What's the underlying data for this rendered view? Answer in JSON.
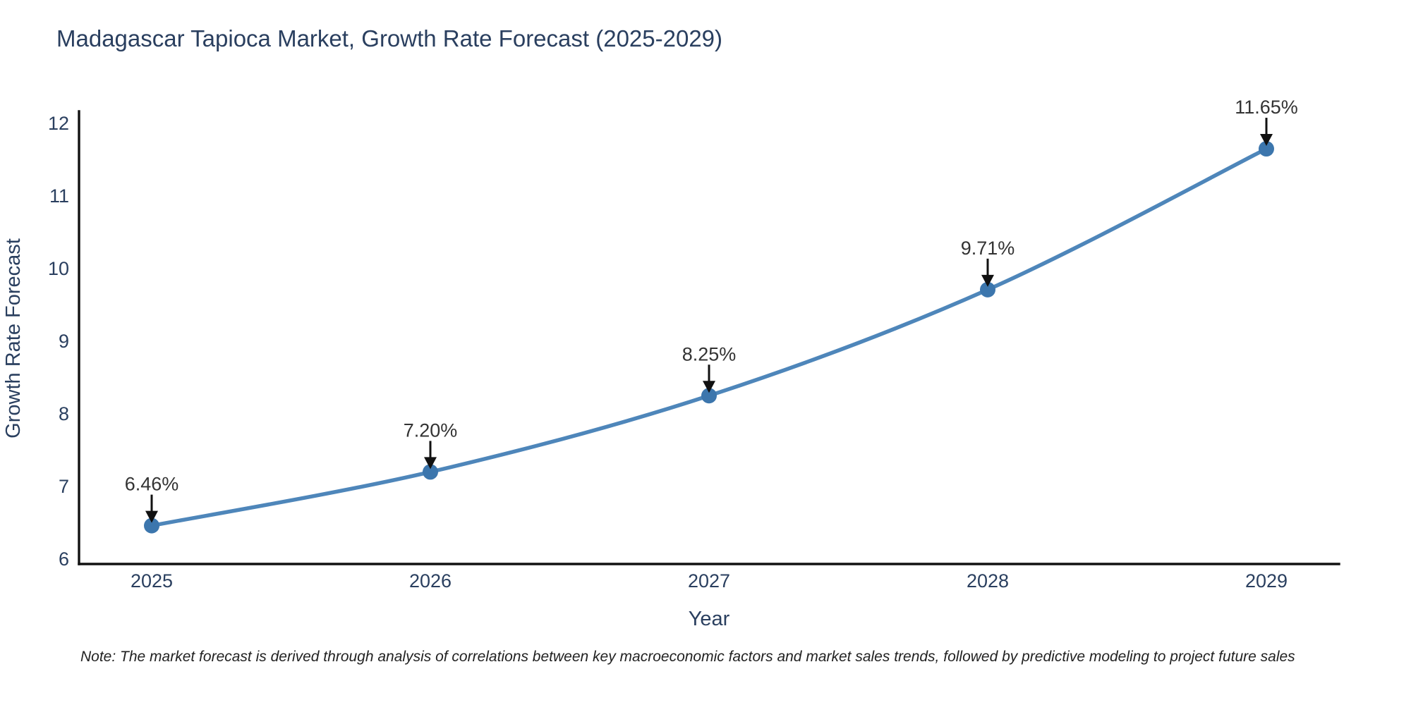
{
  "chart_data": {
    "type": "line",
    "title": "Madagascar Tapioca Market, Growth Rate Forecast (2025-2029)",
    "xlabel": "Year",
    "ylabel": "Growth Rate Forecast",
    "categories": [
      "2025",
      "2026",
      "2027",
      "2028",
      "2029"
    ],
    "x": [
      2025,
      2026,
      2027,
      2028,
      2029
    ],
    "values": [
      6.46,
      7.2,
      8.25,
      9.71,
      11.65
    ],
    "point_labels": [
      "6.46%",
      "7.20%",
      "8.25%",
      "9.71%",
      "11.65%"
    ],
    "y_ticks": [
      6,
      7,
      8,
      9,
      10,
      11,
      12
    ],
    "ylim": [
      6,
      12
    ],
    "grid": false,
    "legend": "none",
    "line_shape": "spline",
    "line_color": "#4e86ba",
    "marker_color": "#3c76ad",
    "axis_color": "#111111",
    "text_color": "#2a3f5f",
    "annotation_color": "#333333",
    "note": "Note: The market forecast is derived through analysis of correlations between key macroeconomic factors and market sales trends, followed by predictive modeling to project future sales"
  }
}
